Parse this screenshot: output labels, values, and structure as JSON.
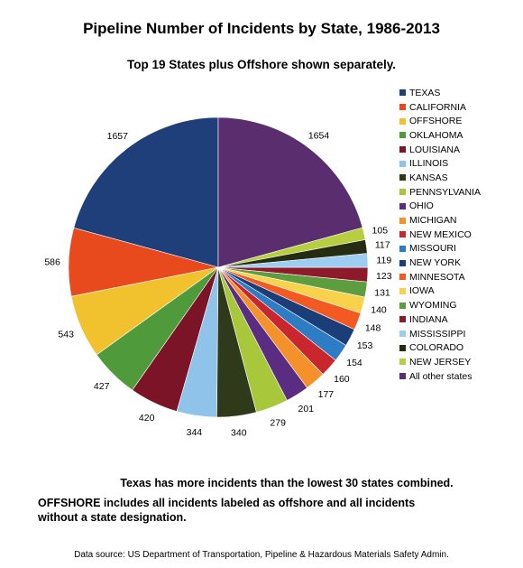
{
  "chart_data": {
    "type": "pie",
    "title": "Pipeline Number of Incidents by State, 1986-2013",
    "subtitle": "Top 19 States plus Offshore shown separately.",
    "legend_position": "right",
    "slices": [
      {
        "label": "TEXAS",
        "value": 1657,
        "color": "#1f3f7a"
      },
      {
        "label": "CALIFORNIA",
        "value": 586,
        "color": "#e8491d"
      },
      {
        "label": "OFFSHORE",
        "value": 543,
        "color": "#f2c12e"
      },
      {
        "label": "OKLAHOMA",
        "value": 427,
        "color": "#4f9a3a"
      },
      {
        "label": "LOUISIANA",
        "value": 420,
        "color": "#7a1426"
      },
      {
        "label": "ILLINOIS",
        "value": 344,
        "color": "#8fc3ea"
      },
      {
        "label": "KANSAS",
        "value": 340,
        "color": "#2f3a1a"
      },
      {
        "label": "PENNSYLVANIA",
        "value": 279,
        "color": "#a9c73a"
      },
      {
        "label": "OHIO",
        "value": 201,
        "color": "#5a2d82"
      },
      {
        "label": "MICHIGAN",
        "value": 177,
        "color": "#f4912a"
      },
      {
        "label": "NEW MEXICO",
        "value": 160,
        "color": "#c9262e"
      },
      {
        "label": "MISSOURI",
        "value": 154,
        "color": "#2e7cc4"
      },
      {
        "label": "NEW YORK",
        "value": 153,
        "color": "#1b3e78"
      },
      {
        "label": "MINNESOTA",
        "value": 148,
        "color": "#f25a22"
      },
      {
        "label": "IOWA",
        "value": 140,
        "color": "#f7d24a"
      },
      {
        "label": "WYOMING",
        "value": 131,
        "color": "#5e9d3f"
      },
      {
        "label": "INDIANA",
        "value": 123,
        "color": "#8c1a2a"
      },
      {
        "label": "MISSISSIPPI",
        "value": 119,
        "color": "#9dcdf0"
      },
      {
        "label": "COLORADO",
        "value": 117,
        "color": "#262c14"
      },
      {
        "label": "NEW JERSEY",
        "value": 105,
        "color": "#b7cf3e"
      },
      {
        "label": "All other states",
        "value": 1654,
        "color": "#5a2d6e"
      }
    ]
  },
  "notes": {
    "comparison": "Texas has more incidents than the lowest 30 states combined.",
    "offshore": "OFFSHORE includes all incidents labeled as offshore and all incidents without a state designation."
  },
  "source": "Data source: US Department of Transportation, Pipeline & Hazardous Materials Safety Admin."
}
